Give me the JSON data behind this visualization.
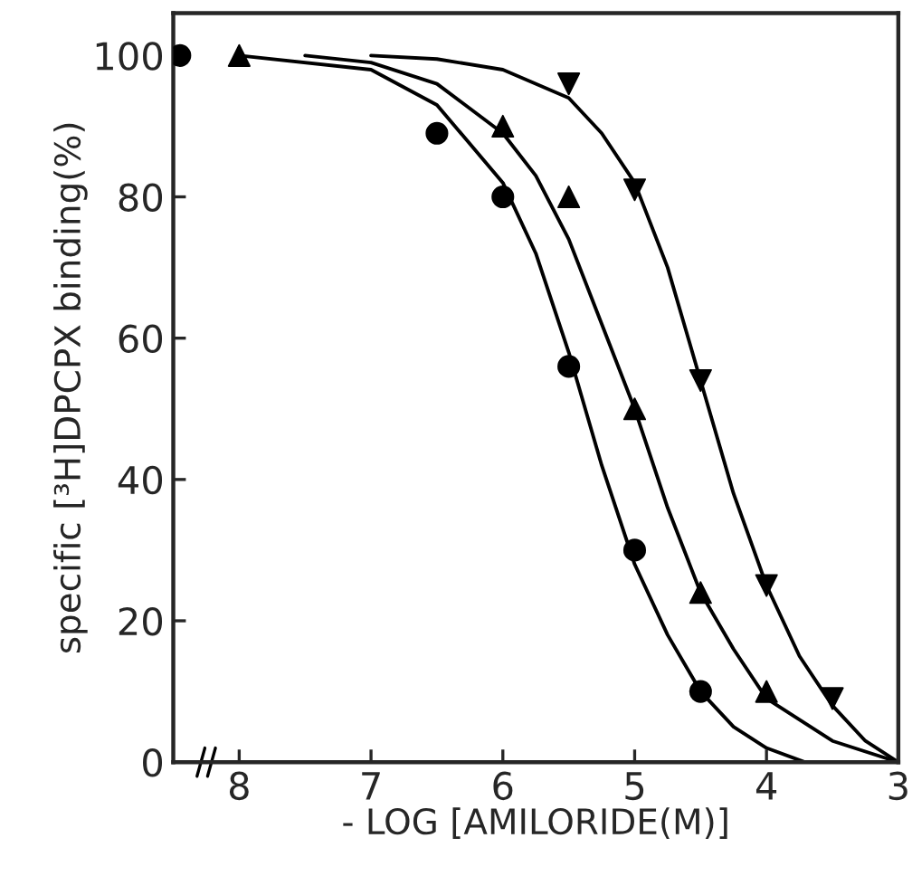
{
  "chart_data": {
    "type": "scatter",
    "xlabel": "- LOG [AMILORIDE(M)]",
    "ylabel": "specific [³H]DPCPX binding(%)",
    "xlim": [
      8.5,
      3
    ],
    "xticks": [
      8,
      7,
      6,
      5,
      4,
      3
    ],
    "ylim": [
      0,
      106
    ],
    "yticks": [
      0,
      20,
      40,
      60,
      80,
      100
    ],
    "grid": false,
    "legend": false,
    "series": [
      {
        "marker": "circle",
        "color": "#000000",
        "x": [
          8.45,
          6.5,
          6,
          5.5,
          5,
          4.5
        ],
        "values": [
          100,
          89,
          80,
          56,
          30,
          10
        ]
      },
      {
        "marker": "triangle",
        "color": "#000000",
        "x": [
          8,
          6,
          5.5,
          5,
          4.5,
          4
        ],
        "values": [
          100,
          90,
          80,
          50,
          24,
          10
        ]
      },
      {
        "marker": "triangle_down",
        "color": "#000000",
        "x": [
          5.5,
          5,
          4.5,
          4,
          3.5
        ],
        "values": [
          96,
          81,
          54,
          25,
          9
        ]
      },
      {
        "type": "line",
        "marker": "none",
        "line_style": "solid",
        "color": "#000000",
        "x": [
          8,
          7,
          6.5,
          6,
          5.75,
          5.5,
          5.25,
          5,
          4.75,
          4.5,
          4.25,
          4,
          3.71
        ],
        "values": [
          100,
          98,
          93,
          82,
          72,
          58,
          42,
          28,
          18,
          10,
          5,
          2,
          0
        ]
      },
      {
        "type": "line",
        "marker": "none",
        "line_style": "solid",
        "color": "#000000",
        "x": [
          7.5,
          7,
          6.5,
          6,
          5.75,
          5.5,
          5.25,
          5,
          4.75,
          4.5,
          4.25,
          4,
          3.5,
          3
        ],
        "values": [
          100,
          99,
          96,
          89,
          83,
          74,
          62,
          50,
          36,
          24,
          16,
          9,
          3,
          0
        ]
      },
      {
        "type": "line",
        "marker": "none",
        "line_style": "solid",
        "color": "#000000",
        "x": [
          7,
          6.5,
          6,
          5.5,
          5.25,
          5,
          4.75,
          4.5,
          4.25,
          4,
          3.75,
          3.5,
          3.25,
          3
        ],
        "values": [
          100,
          99.5,
          98,
          94,
          89,
          82,
          70,
          54,
          38,
          25,
          15,
          8,
          3,
          0
        ]
      }
    ]
  }
}
